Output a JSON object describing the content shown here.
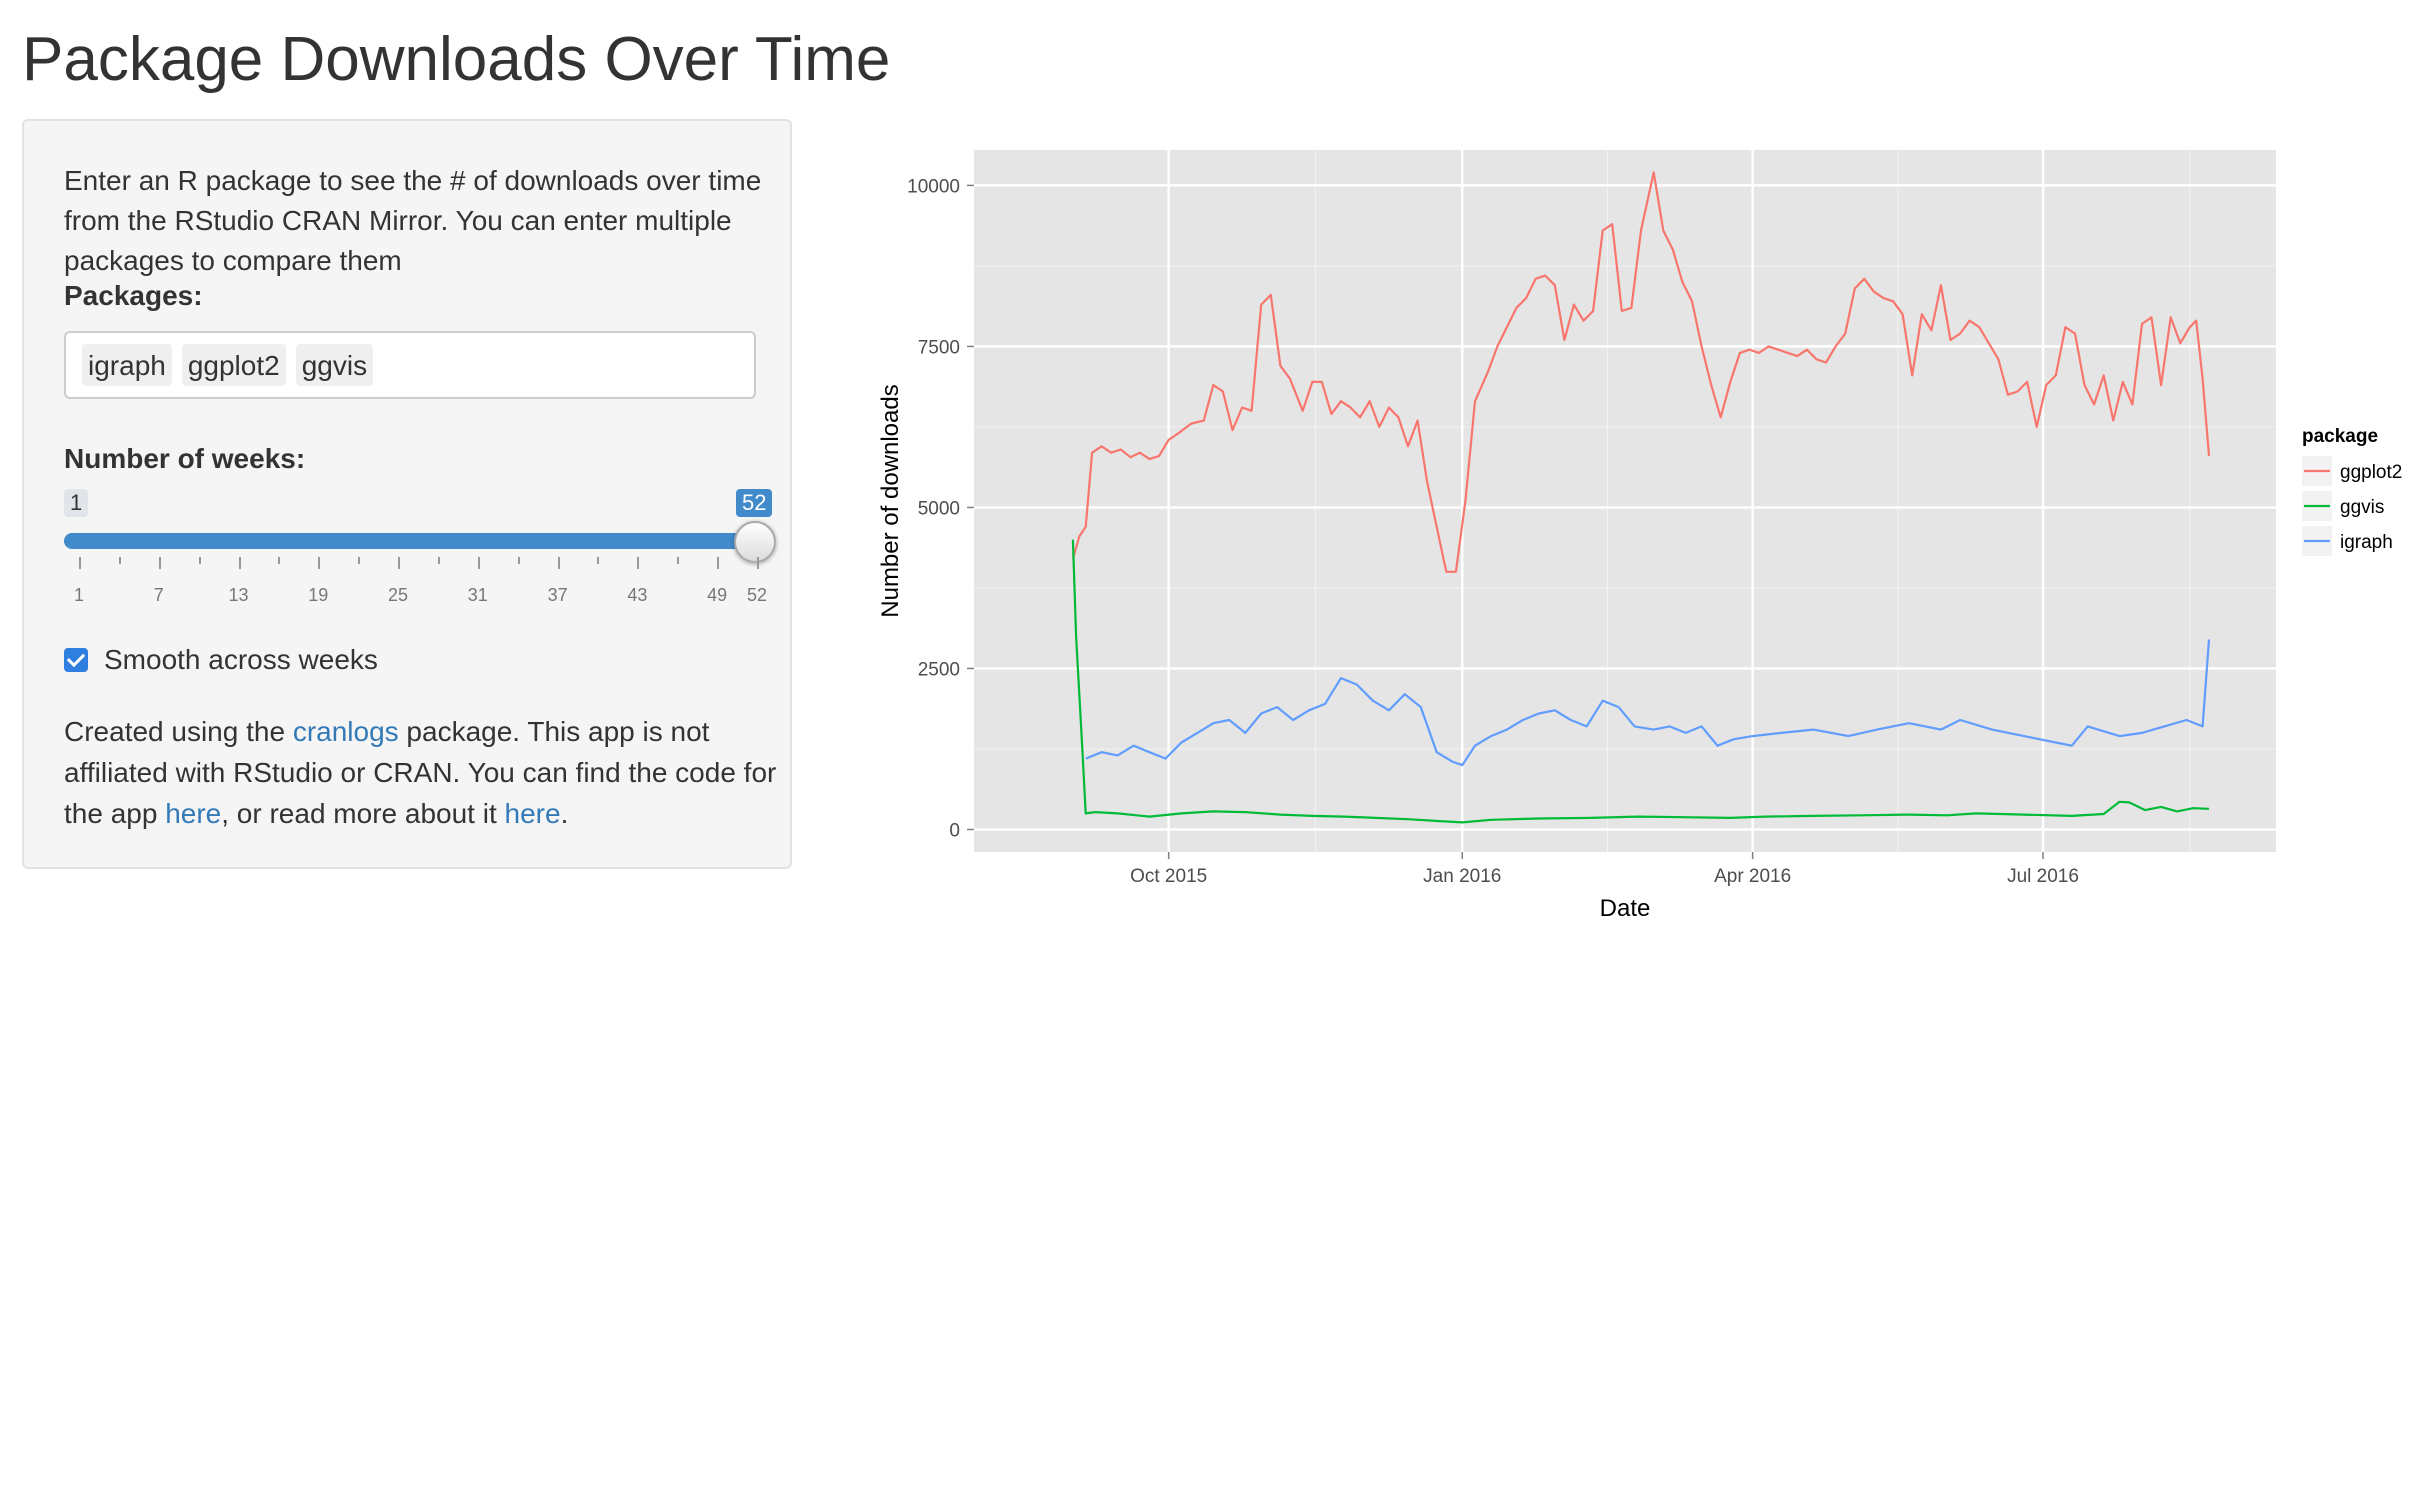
{
  "page": {
    "title": "Package Downloads Over Time"
  },
  "sidebar": {
    "intro": "Enter an R package to see the # of downloads over time from the RStudio CRAN Mirror. You can enter multiple packages to compare them",
    "packages_label": "Packages:",
    "packages": [
      "igraph",
      "ggplot2",
      "ggvis"
    ],
    "weeks_label": "Number of weeks:",
    "slider": {
      "min": 1,
      "max": 52,
      "value": 52,
      "min_label": "1",
      "value_label": "52",
      "tick_labels": [
        "1",
        "7",
        "13",
        "19",
        "25",
        "31",
        "37",
        "43",
        "49",
        "52"
      ],
      "accent_color": "#428bca"
    },
    "smooth_label": "Smooth across weeks",
    "smooth_checked": true,
    "footer": {
      "t1": "Created using the ",
      "link1": "cranlogs",
      "t2": " package. This app is not affiliated with RStudio or CRAN. You can find the code for the app ",
      "link2": "here",
      "t3": ", or read more about it ",
      "link3": "here",
      "t4": "."
    }
  },
  "chart_data": {
    "type": "line",
    "xlabel": "Date",
    "ylabel": "Number of downloads",
    "x_range": [
      "2015-08-01",
      "2016-09-12"
    ],
    "ylim": [
      -350,
      10550
    ],
    "x_ticks": [
      {
        "date": "2015-10-01",
        "label": "Oct 2015"
      },
      {
        "date": "2016-01-01",
        "label": "Jan 2016"
      },
      {
        "date": "2016-04-01",
        "label": "Apr 2016"
      },
      {
        "date": "2016-07-01",
        "label": "Jul 2016"
      }
    ],
    "y_ticks": [
      0,
      2500,
      5000,
      7500,
      10000
    ],
    "y_tick_labels": [
      "0",
      "2500",
      "5000",
      "7500",
      "10000"
    ],
    "grid": true,
    "panel_color": "#e5e5e5",
    "legend": {
      "title": "package",
      "position": "right"
    },
    "series": [
      {
        "name": "ggplot2",
        "color": "#f8766d",
        "points": [
          [
            "2015-09-01",
            4200
          ],
          [
            "2015-09-03",
            4550
          ],
          [
            "2015-09-05",
            4700
          ],
          [
            "2015-09-07",
            5850
          ],
          [
            "2015-09-10",
            5950
          ],
          [
            "2015-09-13",
            5850
          ],
          [
            "2015-09-16",
            5900
          ],
          [
            "2015-09-19",
            5780
          ],
          [
            "2015-09-22",
            5850
          ],
          [
            "2015-09-25",
            5750
          ],
          [
            "2015-09-28",
            5800
          ],
          [
            "2015-10-01",
            6050
          ],
          [
            "2015-10-04",
            6150
          ],
          [
            "2015-10-08",
            6300
          ],
          [
            "2015-10-12",
            6350
          ],
          [
            "2015-10-15",
            6900
          ],
          [
            "2015-10-18",
            6800
          ],
          [
            "2015-10-21",
            6200
          ],
          [
            "2015-10-24",
            6550
          ],
          [
            "2015-10-27",
            6500
          ],
          [
            "2015-10-30",
            8150
          ],
          [
            "2015-11-02",
            8300
          ],
          [
            "2015-11-05",
            7200
          ],
          [
            "2015-11-08",
            7000
          ],
          [
            "2015-11-12",
            6500
          ],
          [
            "2015-11-15",
            6950
          ],
          [
            "2015-11-18",
            6950
          ],
          [
            "2015-11-21",
            6450
          ],
          [
            "2015-11-24",
            6650
          ],
          [
            "2015-11-27",
            6550
          ],
          [
            "2015-11-30",
            6400
          ],
          [
            "2015-12-03",
            6650
          ],
          [
            "2015-12-06",
            6250
          ],
          [
            "2015-12-09",
            6550
          ],
          [
            "2015-12-12",
            6400
          ],
          [
            "2015-12-15",
            5950
          ],
          [
            "2015-12-18",
            6350
          ],
          [
            "2015-12-21",
            5400
          ],
          [
            "2015-12-24",
            4700
          ],
          [
            "2015-12-27",
            4000
          ],
          [
            "2015-12-30",
            4000
          ],
          [
            "2016-01-02",
            5100
          ],
          [
            "2016-01-05",
            6650
          ],
          [
            "2016-01-09",
            7100
          ],
          [
            "2016-01-12",
            7500
          ],
          [
            "2016-01-15",
            7800
          ],
          [
            "2016-01-18",
            8100
          ],
          [
            "2016-01-21",
            8250
          ],
          [
            "2016-01-24",
            8550
          ],
          [
            "2016-01-27",
            8600
          ],
          [
            "2016-01-30",
            8450
          ],
          [
            "2016-02-02",
            7600
          ],
          [
            "2016-02-05",
            8150
          ],
          [
            "2016-02-08",
            7900
          ],
          [
            "2016-02-11",
            8050
          ],
          [
            "2016-02-14",
            9300
          ],
          [
            "2016-02-17",
            9400
          ],
          [
            "2016-02-20",
            8050
          ],
          [
            "2016-02-23",
            8100
          ],
          [
            "2016-02-26",
            9300
          ],
          [
            "2016-03-01",
            10200
          ],
          [
            "2016-03-04",
            9300
          ],
          [
            "2016-03-07",
            9000
          ],
          [
            "2016-03-10",
            8500
          ],
          [
            "2016-03-13",
            8200
          ],
          [
            "2016-03-16",
            7500
          ],
          [
            "2016-03-19",
            6900
          ],
          [
            "2016-03-22",
            6400
          ],
          [
            "2016-03-25",
            6950
          ],
          [
            "2016-03-28",
            7400
          ],
          [
            "2016-03-31",
            7450
          ],
          [
            "2016-04-03",
            7400
          ],
          [
            "2016-04-06",
            7500
          ],
          [
            "2016-04-09",
            7450
          ],
          [
            "2016-04-12",
            7400
          ],
          [
            "2016-04-15",
            7350
          ],
          [
            "2016-04-18",
            7450
          ],
          [
            "2016-04-21",
            7300
          ],
          [
            "2016-04-24",
            7250
          ],
          [
            "2016-04-27",
            7500
          ],
          [
            "2016-04-30",
            7700
          ],
          [
            "2016-05-03",
            8400
          ],
          [
            "2016-05-06",
            8550
          ],
          [
            "2016-05-09",
            8350
          ],
          [
            "2016-05-12",
            8250
          ],
          [
            "2016-05-15",
            8200
          ],
          [
            "2016-05-18",
            8000
          ],
          [
            "2016-05-21",
            7050
          ],
          [
            "2016-05-24",
            8000
          ],
          [
            "2016-05-27",
            7750
          ],
          [
            "2016-05-30",
            8450
          ],
          [
            "2016-06-02",
            7600
          ],
          [
            "2016-06-05",
            7700
          ],
          [
            "2016-06-08",
            7900
          ],
          [
            "2016-06-11",
            7800
          ],
          [
            "2016-06-14",
            7550
          ],
          [
            "2016-06-17",
            7300
          ],
          [
            "2016-06-20",
            6750
          ],
          [
            "2016-06-23",
            6800
          ],
          [
            "2016-06-26",
            6950
          ],
          [
            "2016-06-29",
            6250
          ],
          [
            "2016-07-02",
            6900
          ],
          [
            "2016-07-05",
            7050
          ],
          [
            "2016-07-08",
            7800
          ],
          [
            "2016-07-11",
            7700
          ],
          [
            "2016-07-14",
            6900
          ],
          [
            "2016-07-17",
            6600
          ],
          [
            "2016-07-20",
            7050
          ],
          [
            "2016-07-23",
            6350
          ],
          [
            "2016-07-26",
            6950
          ],
          [
            "2016-07-29",
            6600
          ],
          [
            "2016-08-01",
            7850
          ],
          [
            "2016-08-04",
            7950
          ],
          [
            "2016-08-07",
            6900
          ],
          [
            "2016-08-10",
            7950
          ],
          [
            "2016-08-13",
            7550
          ],
          [
            "2016-08-16",
            7800
          ],
          [
            "2016-08-18",
            7900
          ],
          [
            "2016-08-20",
            7000
          ],
          [
            "2016-08-22",
            5800
          ]
        ]
      },
      {
        "name": "ggvis",
        "color": "#00ba38",
        "points": [
          [
            "2015-09-01",
            4500
          ],
          [
            "2015-09-02",
            3000
          ],
          [
            "2015-09-04",
            1200
          ],
          [
            "2015-09-05",
            250
          ],
          [
            "2015-09-08",
            270
          ],
          [
            "2015-09-15",
            250
          ],
          [
            "2015-09-25",
            200
          ],
          [
            "2015-10-05",
            250
          ],
          [
            "2015-10-15",
            280
          ],
          [
            "2015-10-25",
            270
          ],
          [
            "2015-11-05",
            230
          ],
          [
            "2015-11-15",
            210
          ],
          [
            "2015-11-25",
            200
          ],
          [
            "2015-12-05",
            180
          ],
          [
            "2015-12-15",
            160
          ],
          [
            "2015-12-25",
            130
          ],
          [
            "2016-01-01",
            110
          ],
          [
            "2016-01-10",
            150
          ],
          [
            "2016-01-25",
            170
          ],
          [
            "2016-02-10",
            180
          ],
          [
            "2016-02-25",
            200
          ],
          [
            "2016-03-10",
            190
          ],
          [
            "2016-03-25",
            180
          ],
          [
            "2016-04-05",
            200
          ],
          [
            "2016-04-20",
            210
          ],
          [
            "2016-05-05",
            220
          ],
          [
            "2016-05-20",
            230
          ],
          [
            "2016-06-01",
            220
          ],
          [
            "2016-06-10",
            250
          ],
          [
            "2016-06-25",
            230
          ],
          [
            "2016-07-10",
            210
          ],
          [
            "2016-07-20",
            240
          ],
          [
            "2016-07-25",
            430
          ],
          [
            "2016-07-28",
            420
          ],
          [
            "2016-08-02",
            300
          ],
          [
            "2016-08-07",
            350
          ],
          [
            "2016-08-12",
            280
          ],
          [
            "2016-08-17",
            330
          ],
          [
            "2016-08-22",
            320
          ]
        ]
      },
      {
        "name": "igraph",
        "color": "#619cff",
        "points": [
          [
            "2015-09-05",
            1100
          ],
          [
            "2015-09-10",
            1200
          ],
          [
            "2015-09-15",
            1150
          ],
          [
            "2015-09-20",
            1300
          ],
          [
            "2015-09-25",
            1200
          ],
          [
            "2015-09-30",
            1100
          ],
          [
            "2015-10-05",
            1350
          ],
          [
            "2015-10-10",
            1500
          ],
          [
            "2015-10-15",
            1650
          ],
          [
            "2015-10-20",
            1700
          ],
          [
            "2015-10-25",
            1500
          ],
          [
            "2015-10-30",
            1800
          ],
          [
            "2015-11-04",
            1900
          ],
          [
            "2015-11-09",
            1700
          ],
          [
            "2015-11-14",
            1850
          ],
          [
            "2015-11-19",
            1950
          ],
          [
            "2015-11-24",
            2350
          ],
          [
            "2015-11-29",
            2250
          ],
          [
            "2015-12-04",
            2000
          ],
          [
            "2015-12-09",
            1850
          ],
          [
            "2015-12-14",
            2100
          ],
          [
            "2015-12-19",
            1900
          ],
          [
            "2015-12-24",
            1200
          ],
          [
            "2015-12-29",
            1050
          ],
          [
            "2016-01-01",
            1000
          ],
          [
            "2016-01-05",
            1300
          ],
          [
            "2016-01-10",
            1450
          ],
          [
            "2016-01-15",
            1550
          ],
          [
            "2016-01-20",
            1700
          ],
          [
            "2016-01-25",
            1800
          ],
          [
            "2016-01-30",
            1850
          ],
          [
            "2016-02-04",
            1700
          ],
          [
            "2016-02-09",
            1600
          ],
          [
            "2016-02-14",
            2000
          ],
          [
            "2016-02-19",
            1900
          ],
          [
            "2016-02-24",
            1600
          ],
          [
            "2016-03-01",
            1550
          ],
          [
            "2016-03-06",
            1600
          ],
          [
            "2016-03-11",
            1500
          ],
          [
            "2016-03-16",
            1600
          ],
          [
            "2016-03-21",
            1300
          ],
          [
            "2016-03-26",
            1400
          ],
          [
            "2016-04-01",
            1450
          ],
          [
            "2016-04-10",
            1500
          ],
          [
            "2016-04-20",
            1550
          ],
          [
            "2016-05-01",
            1450
          ],
          [
            "2016-05-10",
            1550
          ],
          [
            "2016-05-20",
            1650
          ],
          [
            "2016-05-30",
            1550
          ],
          [
            "2016-06-05",
            1700
          ],
          [
            "2016-06-15",
            1550
          ],
          [
            "2016-06-25",
            1450
          ],
          [
            "2016-07-05",
            1350
          ],
          [
            "2016-07-10",
            1300
          ],
          [
            "2016-07-15",
            1600
          ],
          [
            "2016-07-25",
            1450
          ],
          [
            "2016-08-01",
            1500
          ],
          [
            "2016-08-08",
            1600
          ],
          [
            "2016-08-15",
            1700
          ],
          [
            "2016-08-20",
            1600
          ],
          [
            "2016-08-22",
            2950
          ]
        ]
      }
    ]
  }
}
